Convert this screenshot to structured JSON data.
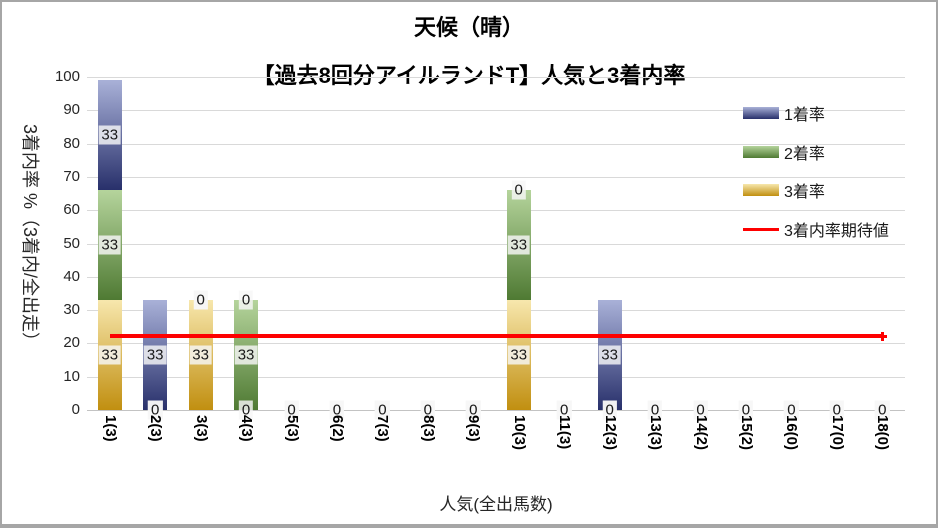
{
  "chart": {
    "title_line1": "天候（晴）",
    "title_line2": "【過去8回分アイルランドT】人気と3着内率",
    "y_axis_title": "3着内率 %（3着内/全出走）",
    "x_axis_title": "人気(全出馬数)"
  },
  "chart_data": {
    "type": "bar",
    "stacked": true,
    "stack_order_bottom_to_top": [
      "3着率",
      "2着率",
      "1着率"
    ],
    "title": "天候（晴）【過去8回分アイルランドT】人気と3着内率",
    "xlabel": "人気(全出馬数)",
    "ylabel": "3着内率 %（3着内/全出走）",
    "ylim": [
      0,
      100
    ],
    "y_ticks": [
      0,
      10,
      20,
      30,
      40,
      50,
      60,
      70,
      80,
      90,
      100
    ],
    "grid": true,
    "legend_position": "right-inside",
    "categories": [
      "1(3)",
      "2(3)",
      "3(3)",
      "4(3)",
      "5(3)",
      "6(2)",
      "7(3)",
      "8(3)",
      "9(3)",
      "10(3)",
      "11(3)",
      "12(3)",
      "13(3)",
      "14(2)",
      "15(2)",
      "16(0)",
      "17(0)",
      "18(0)"
    ],
    "series": [
      {
        "name": "1着率",
        "color_light": "#a9b1d8",
        "color_dark": "#28306b",
        "values": [
          33,
          33,
          0,
          0,
          0,
          0,
          0,
          0,
          0,
          0,
          0,
          33,
          0,
          0,
          0,
          0,
          0,
          0
        ]
      },
      {
        "name": "2着率",
        "color_light": "#b5d49c",
        "color_dark": "#4f7a33",
        "values": [
          33,
          0,
          0,
          33,
          0,
          0,
          0,
          0,
          0,
          33,
          0,
          0,
          0,
          0,
          0,
          0,
          0,
          0
        ]
      },
      {
        "name": "3着率",
        "color_light": "#f7e7ad",
        "color_dark": "#c18f10",
        "values": [
          33,
          0,
          33,
          0,
          0,
          0,
          0,
          0,
          0,
          33,
          0,
          0,
          0,
          0,
          0,
          0,
          0,
          0
        ]
      }
    ],
    "expected_line": {
      "name": "3着内率期待値",
      "value": 22.2,
      "color": "#fe0000"
    }
  }
}
